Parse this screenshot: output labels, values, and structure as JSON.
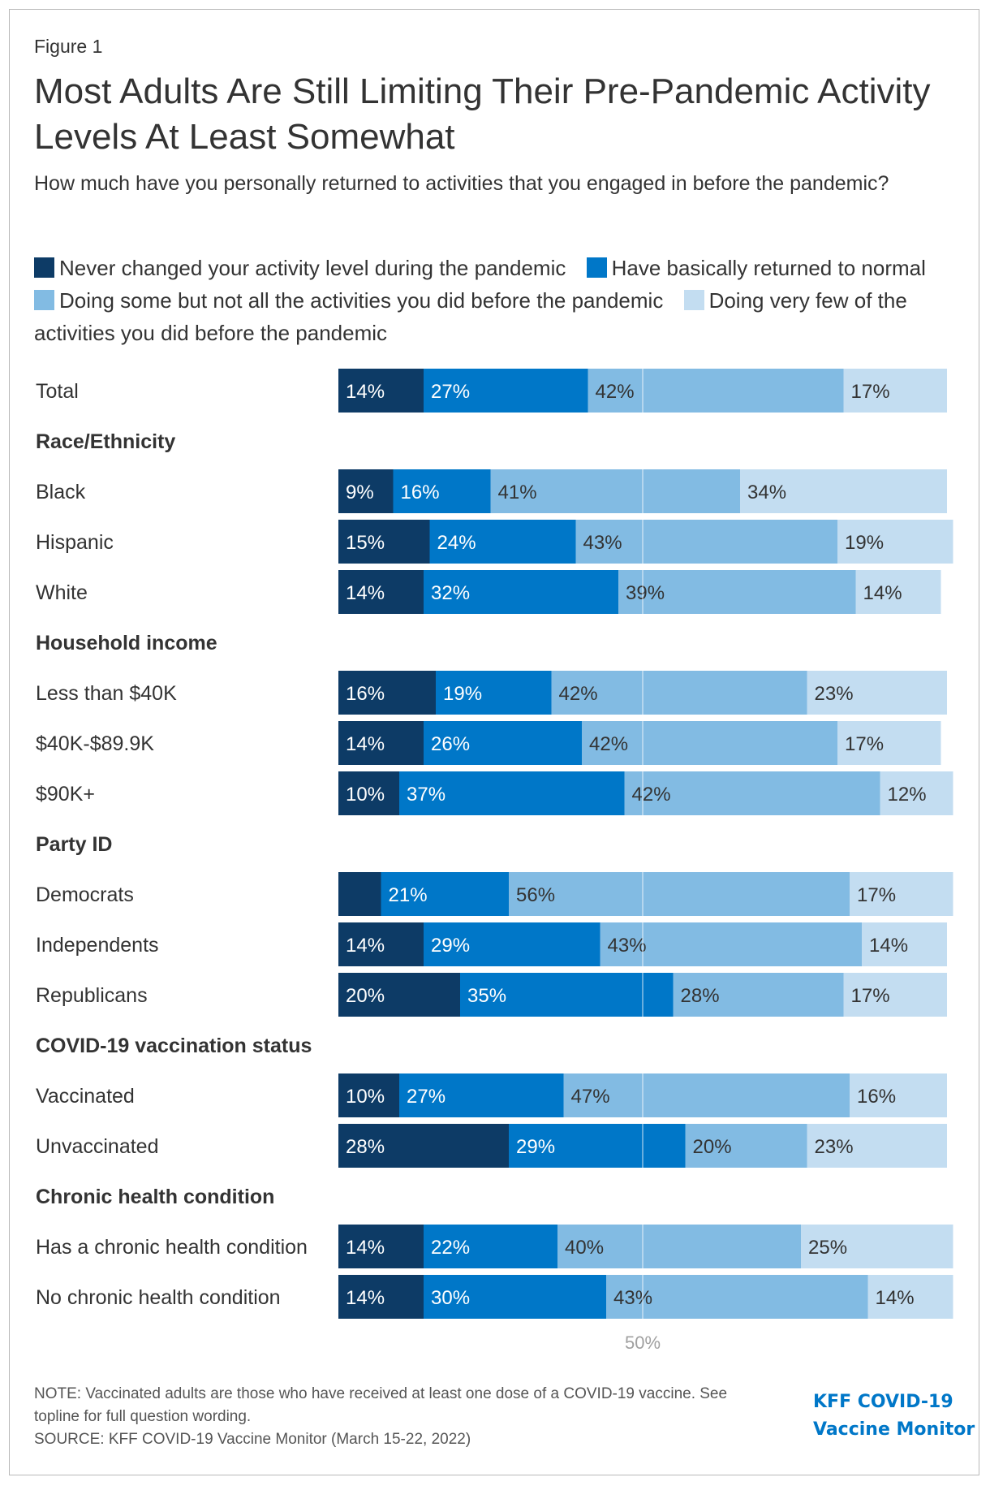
{
  "figure_label": "Figure 1",
  "title": "Most Adults Are Still Limiting Their Pre-Pandemic Activity Levels At Least Somewhat",
  "subtitle": "How much have you personally returned to activities that you engaged in before the pandemic?",
  "legend": [
    {
      "label": "Never changed your activity level during the pandemic",
      "color": "#0d3b66"
    },
    {
      "label": "Have basically returned to normal",
      "color": "#0077c8"
    },
    {
      "label": "Doing some but not all the activities you did before the pandemic",
      "color": "#82bbe3"
    },
    {
      "label": "Doing very few of the activities you did before the pandemic",
      "color": "#c3ddf1"
    }
  ],
  "footer": {
    "note": "NOTE: Vaccinated adults are those who have received at least one dose of a COVID-19 vaccine. See topline for full question wording.",
    "source": "SOURCE: KFF COVID-19 Vaccine Monitor (March 15-22, 2022)",
    "logo_line1": "KFF COVID-19",
    "logo_line2": "Vaccine Monitor"
  },
  "chart_data": {
    "type": "bar",
    "orientation": "horizontal-stacked-100",
    "title": "Most Adults Are Still Limiting Their Pre-Pandemic Activity Levels At Least Somewhat",
    "series_names": [
      "Never changed your activity level during the pandemic",
      "Have basically returned to normal",
      "Doing some but not all the activities you did before the pandemic",
      "Doing very few of the activities you did before the pandemic"
    ],
    "colors": [
      "#0d3b66",
      "#0077c8",
      "#82bbe3",
      "#c3ddf1"
    ],
    "reference_line": {
      "value": 50,
      "label": "50%"
    },
    "rows": [
      {
        "kind": "bar",
        "label": "Total",
        "values": [
          14,
          27,
          42,
          17
        ],
        "labels": [
          "14%",
          "27%",
          "42%",
          "17%"
        ]
      },
      {
        "kind": "header",
        "label": "Race/Ethnicity"
      },
      {
        "kind": "bar",
        "label": "Black",
        "values": [
          9,
          16,
          41,
          34
        ],
        "labels": [
          "9%",
          "16%",
          "41%",
          "34%"
        ]
      },
      {
        "kind": "bar",
        "label": "Hispanic",
        "values": [
          15,
          24,
          43,
          19
        ],
        "labels": [
          "15%",
          "24%",
          "43%",
          "19%"
        ]
      },
      {
        "kind": "bar",
        "label": "White",
        "values": [
          14,
          32,
          39,
          14
        ],
        "labels": [
          "14%",
          "32%",
          "39%",
          "14%"
        ]
      },
      {
        "kind": "header",
        "label": "Household income"
      },
      {
        "kind": "bar",
        "label": "Less than $40K",
        "values": [
          16,
          19,
          42,
          23
        ],
        "labels": [
          "16%",
          "19%",
          "42%",
          "23%"
        ]
      },
      {
        "kind": "bar",
        "label": "$40K-$89.9K",
        "values": [
          14,
          26,
          42,
          17
        ],
        "labels": [
          "14%",
          "26%",
          "42%",
          "17%"
        ]
      },
      {
        "kind": "bar",
        "label": "$90K+",
        "values": [
          10,
          37,
          42,
          12
        ],
        "labels": [
          "10%",
          "37%",
          "42%",
          "12%"
        ]
      },
      {
        "kind": "header",
        "label": "Party ID"
      },
      {
        "kind": "bar",
        "label": "Democrats",
        "values": [
          7,
          21,
          56,
          17
        ],
        "labels": [
          "",
          "21%",
          "56%",
          "17%"
        ]
      },
      {
        "kind": "bar",
        "label": "Independents",
        "values": [
          14,
          29,
          43,
          14
        ],
        "labels": [
          "14%",
          "29%",
          "43%",
          "14%"
        ]
      },
      {
        "kind": "bar",
        "label": "Republicans",
        "values": [
          20,
          35,
          28,
          17
        ],
        "labels": [
          "20%",
          "35%",
          "28%",
          "17%"
        ]
      },
      {
        "kind": "header",
        "label": "COVID-19 vaccination status"
      },
      {
        "kind": "bar",
        "label": "Vaccinated",
        "values": [
          10,
          27,
          47,
          16
        ],
        "labels": [
          "10%",
          "27%",
          "47%",
          "16%"
        ]
      },
      {
        "kind": "bar",
        "label": "Unvaccinated",
        "values": [
          28,
          29,
          20,
          23
        ],
        "labels": [
          "28%",
          "29%",
          "20%",
          "23%"
        ]
      },
      {
        "kind": "header",
        "label": "Chronic health condition"
      },
      {
        "kind": "bar",
        "label": "Has a chronic health condition",
        "values": [
          14,
          22,
          40,
          25
        ],
        "labels": [
          "14%",
          "22%",
          "40%",
          "25%"
        ]
      },
      {
        "kind": "bar",
        "label": "No chronic health condition",
        "values": [
          14,
          30,
          43,
          14
        ],
        "labels": [
          "14%",
          "30%",
          "43%",
          "14%"
        ]
      }
    ]
  }
}
